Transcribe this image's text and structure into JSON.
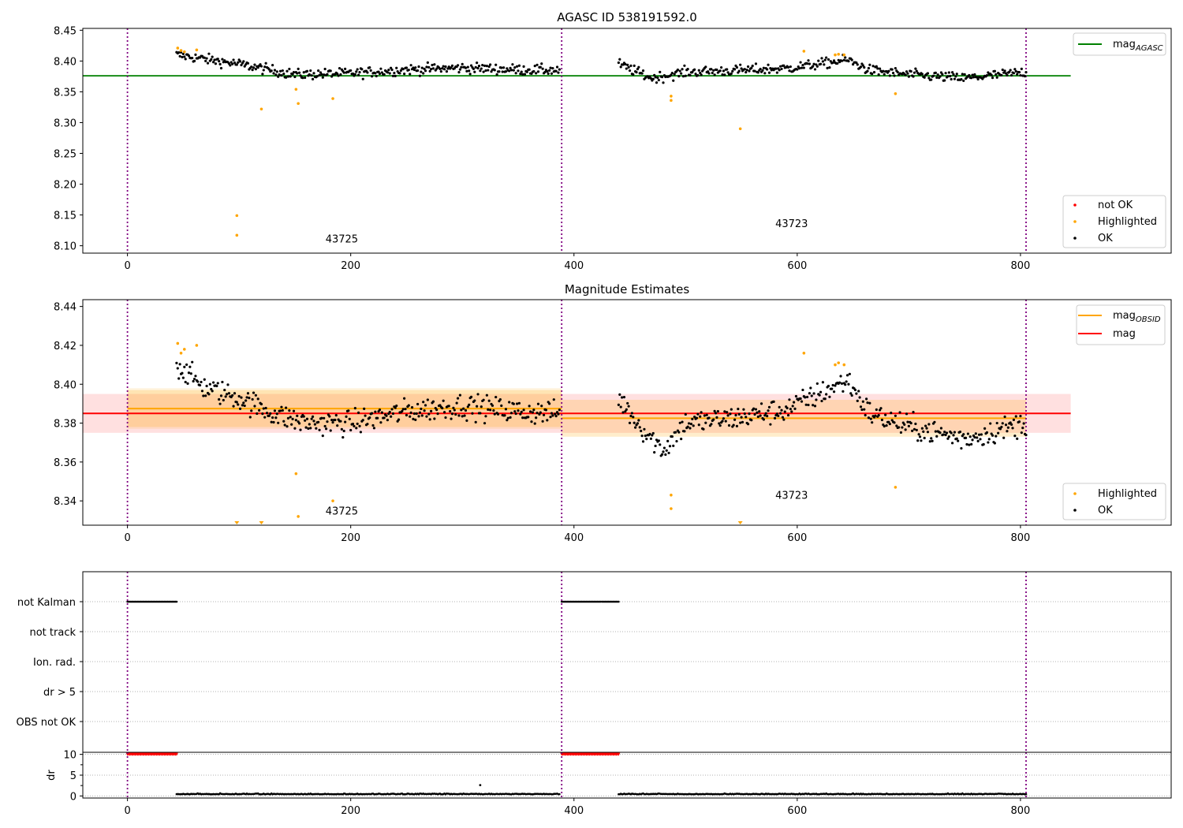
{
  "figure": {
    "panel1_title": "AGASC ID 538191592.0",
    "panel2_title": "Magnitude Estimates"
  },
  "chart_data": [
    {
      "type": "scatter",
      "title": "AGASC ID 538191592.0",
      "xlabel": "",
      "ylabel": "",
      "xlim": [
        -40,
        935
      ],
      "ylim": [
        8.088,
        8.453
      ],
      "xticks": [
        0,
        200,
        400,
        600,
        800
      ],
      "yticks": [
        8.1,
        8.15,
        8.2,
        8.25,
        8.3,
        8.35,
        8.4,
        8.45
      ],
      "ytick_labels": [
        "8.10",
        "8.15",
        "8.20",
        "8.25",
        "8.30",
        "8.35",
        "8.40",
        "8.45"
      ],
      "obsid_boundaries": [
        0,
        389,
        805
      ],
      "obsid_labels": [
        {
          "text": "43725",
          "x": 192,
          "y": 8.105
        },
        {
          "text": "43723",
          "x": 595,
          "y": 8.13
        }
      ],
      "reference_lines": [
        {
          "name": "mag_AGASC",
          "y": 8.376,
          "x_range": [
            -40,
            845
          ],
          "color": "#008000"
        }
      ],
      "ok_segments": [
        {
          "x_start": 44,
          "x_end": 387,
          "trend": [
            [
              44,
              8.41
            ],
            [
              100,
              8.395
            ],
            [
              150,
              8.378
            ],
            [
              200,
              8.38
            ],
            [
              250,
              8.386
            ],
            [
              300,
              8.389
            ],
            [
              350,
              8.386
            ],
            [
              387,
              8.385
            ]
          ]
        },
        {
          "x_start": 440,
          "x_end": 805,
          "trend": [
            [
              440,
              8.395
            ],
            [
              470,
              8.372
            ],
            [
              500,
              8.382
            ],
            [
              550,
              8.385
            ],
            [
              590,
              8.388
            ],
            [
              620,
              8.395
            ],
            [
              645,
              8.402
            ],
            [
              665,
              8.385
            ],
            [
              700,
              8.378
            ],
            [
              750,
              8.372
            ],
            [
              805,
              8.382
            ]
          ]
        }
      ],
      "highlighted": [
        [
          45,
          8.421
        ],
        [
          48,
          8.417
        ],
        [
          51,
          8.415
        ],
        [
          62,
          8.418
        ],
        [
          98,
          8.149
        ],
        [
          98,
          8.117
        ],
        [
          120,
          8.322
        ],
        [
          151,
          8.354
        ],
        [
          153,
          8.331
        ],
        [
          184,
          8.339
        ],
        [
          487,
          8.343
        ],
        [
          487,
          8.336
        ],
        [
          549,
          8.29
        ],
        [
          606,
          8.416
        ],
        [
          634,
          8.41
        ],
        [
          637,
          8.411
        ],
        [
          642,
          8.41
        ],
        [
          688,
          8.347
        ]
      ],
      "legends": [
        {
          "position": "top-right",
          "entries": [
            {
              "label": "mag",
              "subscript": "AGASC",
              "color": "#008000",
              "marker": "line"
            }
          ]
        },
        {
          "position": "lower-right",
          "entries": [
            {
              "label": "not OK",
              "color": "#ff0000",
              "marker": "dot"
            },
            {
              "label": "Highlighted",
              "color": "#ffa500",
              "marker": "dot"
            },
            {
              "label": "OK",
              "color": "#000000",
              "marker": "dot"
            }
          ]
        }
      ]
    },
    {
      "type": "scatter",
      "title": "Magnitude Estimates",
      "xlabel": "",
      "ylabel": "",
      "xlim": [
        -40,
        935
      ],
      "ylim": [
        8.3275,
        8.4435
      ],
      "xticks": [
        0,
        200,
        400,
        600,
        800
      ],
      "yticks": [
        8.34,
        8.36,
        8.38,
        8.4,
        8.42,
        8.44
      ],
      "ytick_labels": [
        "8.34",
        "8.36",
        "8.38",
        "8.40",
        "8.42",
        "8.44"
      ],
      "obsid_boundaries": [
        0,
        389,
        805
      ],
      "obsid_labels": [
        {
          "text": "43725",
          "x": 192,
          "y": 8.333
        },
        {
          "text": "43723",
          "x": 595,
          "y": 8.341
        }
      ],
      "bands": [
        {
          "name": "mag band",
          "x_range": [
            -40,
            845
          ],
          "y_range": [
            8.375,
            8.395
          ],
          "color": "rgba(255,0,0,0.12)"
        },
        {
          "name": "mag_OBSID band 43725",
          "x_range": [
            0,
            389
          ],
          "y_range": [
            8.378,
            8.397
          ],
          "color": "rgba(255,165,0,0.20)"
        },
        {
          "name": "mag_OBSID band 43725 outer",
          "x_range": [
            0,
            389
          ],
          "y_range": [
            8.377,
            8.398
          ],
          "color": "rgba(255,165,0,0.12)"
        },
        {
          "name": "mag_OBSID band 43723",
          "x_range": [
            389,
            805
          ],
          "y_range": [
            8.373,
            8.392
          ],
          "color": "rgba(255,165,0,0.20)"
        }
      ],
      "reference_lines": [
        {
          "name": "mag_OBSID 43725",
          "y": 8.3875,
          "x_range": [
            0,
            389
          ],
          "color": "#ffa500"
        },
        {
          "name": "mag_OBSID 43723",
          "y": 8.3825,
          "x_range": [
            389,
            805
          ],
          "color": "#ffa500"
        },
        {
          "name": "mag",
          "y": 8.385,
          "x_range": [
            -40,
            845
          ],
          "color": "#ff0000"
        }
      ],
      "ok_segments": [
        {
          "x_start": 44,
          "x_end": 387,
          "trend": [
            [
              44,
              8.41
            ],
            [
              70,
              8.398
            ],
            [
              100,
              8.393
            ],
            [
              130,
              8.385
            ],
            [
              160,
              8.38
            ],
            [
              200,
              8.38
            ],
            [
              250,
              8.386
            ],
            [
              300,
              8.389
            ],
            [
              350,
              8.386
            ],
            [
              387,
              8.385
            ]
          ]
        },
        {
          "x_start": 440,
          "x_end": 805,
          "trend": [
            [
              440,
              8.393
            ],
            [
              460,
              8.378
            ],
            [
              480,
              8.366
            ],
            [
              500,
              8.38
            ],
            [
              550,
              8.383
            ],
            [
              590,
              8.387
            ],
            [
              620,
              8.395
            ],
            [
              645,
              8.402
            ],
            [
              665,
              8.385
            ],
            [
              700,
              8.378
            ],
            [
              750,
              8.372
            ],
            [
              805,
              8.38
            ]
          ]
        }
      ],
      "highlighted": [
        [
          45,
          8.421
        ],
        [
          48,
          8.416
        ],
        [
          51,
          8.418
        ],
        [
          62,
          8.42
        ],
        [
          151,
          8.354
        ],
        [
          153,
          8.332
        ],
        [
          184,
          8.34
        ],
        [
          487,
          8.343
        ],
        [
          487,
          8.336
        ],
        [
          606,
          8.416
        ],
        [
          634,
          8.41
        ],
        [
          637,
          8.411
        ],
        [
          642,
          8.41
        ],
        [
          688,
          8.347
        ]
      ],
      "offscale_low": [
        98,
        120,
        549
      ],
      "legends": [
        {
          "position": "top-right",
          "entries": [
            {
              "label": "mag",
              "subscript": "OBSID",
              "color": "#ffa500",
              "marker": "line"
            },
            {
              "label": "mag",
              "subscript": "",
              "color": "#ff0000",
              "marker": "line"
            }
          ]
        },
        {
          "position": "lower-right",
          "entries": [
            {
              "label": "Highlighted",
              "color": "#ffa500",
              "marker": "dot"
            },
            {
              "label": "OK",
              "color": "#000000",
              "marker": "dot"
            }
          ]
        }
      ]
    },
    {
      "type": "scatter",
      "title": "",
      "xlabel": "",
      "ylabel": "",
      "xlim": [
        -40,
        935
      ],
      "categories": [
        "not Kalman",
        "not track",
        "Ion. rad.",
        "dr > 5",
        "OBS not OK"
      ],
      "obsid_boundaries": [
        0,
        389,
        805
      ],
      "flag_ranges": [
        {
          "category": "not Kalman",
          "x_ranges": [
            [
              0,
              44
            ],
            [
              389,
              440
            ]
          ]
        }
      ]
    },
    {
      "type": "scatter",
      "title": "",
      "xlabel": "",
      "ylabel": "dr",
      "xlim": [
        -40,
        935
      ],
      "ylim": [
        -0.5,
        10.5
      ],
      "yticks": [
        0,
        5,
        10
      ],
      "ytick_labels": [
        "0",
        "5",
        "10"
      ],
      "xticks": [
        0,
        200,
        400,
        600,
        800
      ],
      "obsid_boundaries": [
        0,
        389,
        805
      ],
      "capped_value": 10,
      "capped_ranges": [
        [
          0,
          44
        ],
        [
          389,
          440
        ]
      ],
      "ok_baseline": 0.4,
      "ok_ranges": [
        [
          44,
          387
        ],
        [
          440,
          805
        ]
      ],
      "outliers": [
        [
          316,
          2.6
        ]
      ]
    }
  ]
}
